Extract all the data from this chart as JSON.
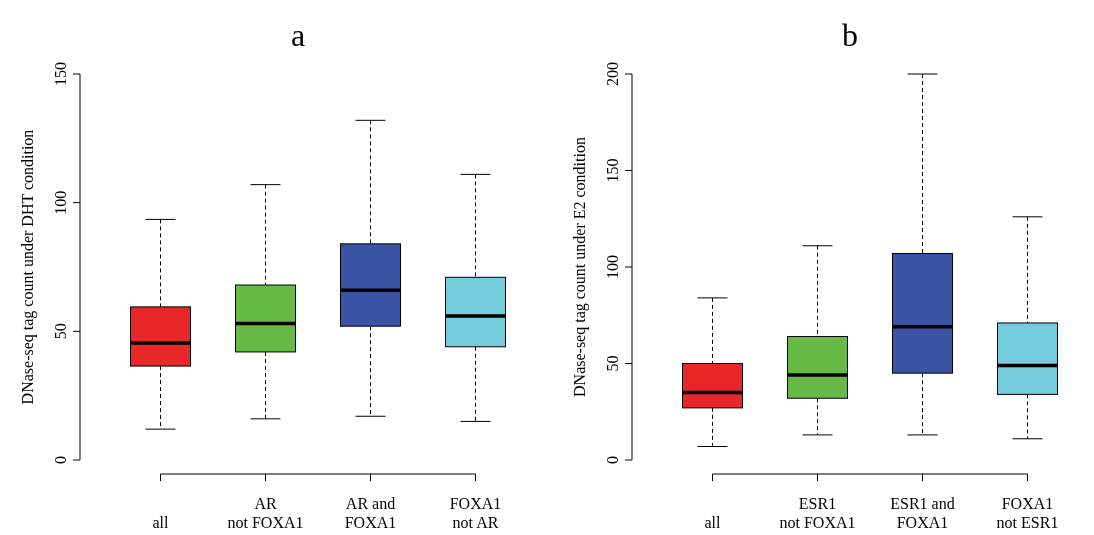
{
  "chart_data": [
    {
      "type": "box",
      "title": "a",
      "ylabel": "DNase-seq tag count under DHT condition",
      "categories": [
        "all",
        "AR\nnot FOXA1",
        "AR and\nFOXA1",
        "FOXA1\nnot AR"
      ],
      "colors": [
        "#e8272a",
        "#69b946",
        "#3a53a4",
        "#74cbdb"
      ],
      "boxes": [
        {
          "low": 12,
          "q1": 36.5,
          "median": 45.5,
          "q3": 59.5,
          "high": 93.5
        },
        {
          "low": 16,
          "q1": 42,
          "median": 53,
          "q3": 68,
          "high": 107
        },
        {
          "low": 17,
          "q1": 52,
          "median": 66,
          "q3": 84,
          "high": 132
        },
        {
          "low": 15,
          "q1": 44,
          "median": 56,
          "q3": 71,
          "high": 111
        }
      ],
      "ylim": [
        0,
        150
      ],
      "yticks": [
        0,
        50,
        100,
        150
      ]
    },
    {
      "type": "box",
      "title": "b",
      "ylabel": "DNase-seq tag count under E2 condition",
      "categories": [
        "all",
        "ESR1\nnot FOXA1",
        "ESR1 and\nFOXA1",
        "FOXA1\nnot ESR1"
      ],
      "colors": [
        "#e8272a",
        "#69b946",
        "#3a53a4",
        "#74cbdb"
      ],
      "boxes": [
        {
          "low": 7,
          "q1": 27,
          "median": 35,
          "q3": 50,
          "high": 84
        },
        {
          "low": 13,
          "q1": 32,
          "median": 44,
          "q3": 64,
          "high": 111
        },
        {
          "low": 13,
          "q1": 45,
          "median": 69,
          "q3": 107,
          "high": 200
        },
        {
          "low": 11,
          "q1": 34,
          "median": 49,
          "q3": 71,
          "high": 126
        }
      ],
      "ylim": [
        0,
        200
      ],
      "yticks": [
        0,
        50,
        100,
        150,
        200
      ]
    }
  ]
}
